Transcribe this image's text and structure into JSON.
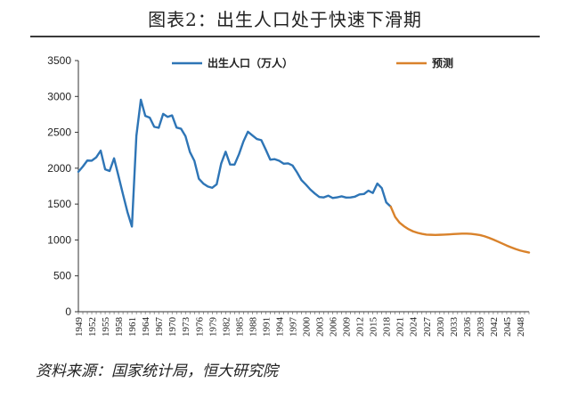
{
  "title": "图表2：出生人口处于快速下滑期",
  "source": "资料来源：国家统计局，恒大研究院",
  "colors": {
    "historical": "#2e75b6",
    "forecast": "#d9822b"
  },
  "chart_data": {
    "type": "line",
    "title": "图表2：出生人口处于快速下滑期",
    "xlabel": "",
    "ylabel": "",
    "ylim": [
      0,
      3500
    ],
    "xlim": [
      1949,
      2050
    ],
    "yticks": [
      "0",
      "500",
      "1000",
      "1500",
      "2000",
      "2500",
      "3000",
      "3500"
    ],
    "xticks": [
      "1949",
      "1952",
      "1955",
      "1958",
      "1961",
      "1964",
      "1967",
      "1970",
      "1973",
      "1976",
      "1979",
      "1982",
      "1985",
      "1988",
      "1991",
      "1994",
      "1997",
      "2000",
      "2003",
      "2006",
      "2009",
      "2012",
      "2015",
      "2018",
      "2021",
      "2024",
      "2027",
      "2030",
      "2033",
      "2036",
      "2039",
      "2042",
      "2045",
      "2048"
    ],
    "legend_position": "top",
    "grid": false,
    "series": [
      {
        "name": "出生人口（万人）",
        "color": "#2e75b6",
        "x": [
          1949,
          1950,
          1951,
          1952,
          1953,
          1954,
          1955,
          1956,
          1957,
          1958,
          1959,
          1960,
          1961,
          1962,
          1963,
          1964,
          1965,
          1966,
          1967,
          1968,
          1969,
          1970,
          1971,
          1972,
          1973,
          1974,
          1975,
          1976,
          1977,
          1978,
          1979,
          1980,
          1981,
          1982,
          1983,
          1984,
          1985,
          1986,
          1987,
          1988,
          1989,
          1990,
          1991,
          1992,
          1993,
          1994,
          1995,
          1996,
          1997,
          1998,
          1999,
          2000,
          2001,
          2002,
          2003,
          2004,
          2005,
          2006,
          2007,
          2008,
          2009,
          2010,
          2011,
          2012,
          2013,
          2014,
          2015,
          2016,
          2017,
          2018,
          2019
        ],
        "values": [
          1950,
          2023,
          2107,
          2105,
          2151,
          2245,
          1984,
          1961,
          2138,
          1889,
          1635,
          1389,
          1187,
          2451,
          2954,
          2729,
          2704,
          2577,
          2563,
          2757,
          2715,
          2736,
          2567,
          2550,
          2447,
          2226,
          2102,
          1853,
          1786,
          1745,
          1727,
          1776,
          2064,
          2230,
          2052,
          2050,
          2196,
          2374,
          2508,
          2457,
          2407,
          2391,
          2258,
          2119,
          2126,
          2104,
          2063,
          2067,
          2038,
          1942,
          1834,
          1771,
          1702,
          1647,
          1599,
          1593,
          1617,
          1585,
          1594,
          1608,
          1591,
          1592,
          1604,
          1635,
          1640,
          1687,
          1655,
          1786,
          1723,
          1523,
          1465
        ]
      },
      {
        "name": "预测",
        "color": "#d9822b",
        "x": [
          2019,
          2020,
          2021,
          2022,
          2023,
          2024,
          2025,
          2026,
          2027,
          2028,
          2029,
          2030,
          2031,
          2032,
          2033,
          2034,
          2035,
          2036,
          2037,
          2038,
          2039,
          2040,
          2041,
          2042,
          2043,
          2044,
          2045,
          2046,
          2047,
          2048,
          2049,
          2050
        ],
        "values": [
          1465,
          1320,
          1240,
          1190,
          1150,
          1120,
          1100,
          1085,
          1075,
          1072,
          1070,
          1072,
          1075,
          1078,
          1082,
          1085,
          1088,
          1088,
          1085,
          1078,
          1068,
          1052,
          1030,
          1005,
          978,
          950,
          922,
          897,
          873,
          853,
          838,
          825
        ]
      }
    ]
  }
}
